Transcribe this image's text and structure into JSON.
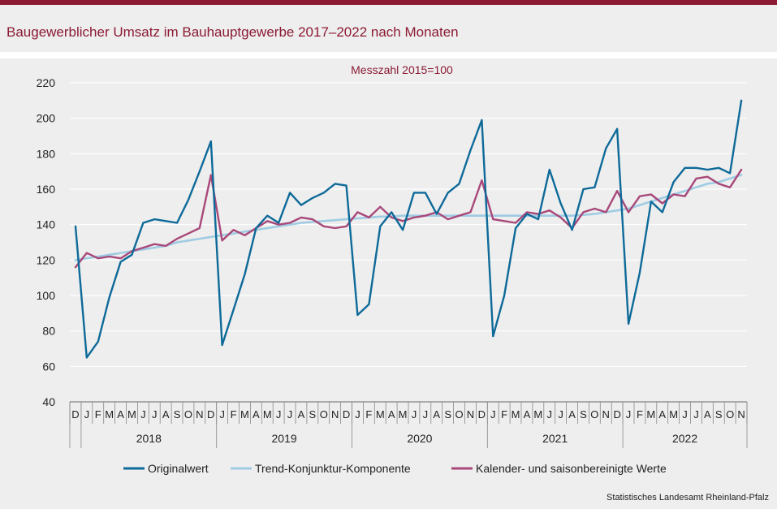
{
  "title": "Baugewerblicher Umsatz im Bauhauptgewerbe 2017–2022 nach Monaten",
  "source": "Statistisches Landesamt Rheinland-Pfalz",
  "colors": {
    "accent": "#8b1a32",
    "original": "#0e6a99",
    "trend": "#9fcce3",
    "seasonal": "#a8487a",
    "background": "#eeeeee"
  },
  "chart_data": {
    "type": "line",
    "subtitle": "Messzahl 2015=100",
    "ylim": [
      40,
      220
    ],
    "yticks": [
      40,
      60,
      80,
      100,
      120,
      140,
      160,
      180,
      200,
      220
    ],
    "x_month_labels": [
      "D",
      "J",
      "F",
      "M",
      "A",
      "M",
      "J",
      "J",
      "A",
      "S",
      "O",
      "N",
      "D",
      "J",
      "F",
      "M",
      "A",
      "M",
      "J",
      "J",
      "A",
      "S",
      "O",
      "N",
      "D",
      "J",
      "F",
      "M",
      "A",
      "M",
      "J",
      "J",
      "A",
      "S",
      "O",
      "N",
      "D",
      "J",
      "F",
      "M",
      "A",
      "M",
      "J",
      "J",
      "A",
      "S",
      "O",
      "N",
      "D",
      "J",
      "F",
      "M",
      "A",
      "M",
      "J",
      "J",
      "A",
      "S",
      "O",
      "N"
    ],
    "years": [
      {
        "label": "2018",
        "start": 1,
        "end": 12
      },
      {
        "label": "2019",
        "start": 13,
        "end": 24
      },
      {
        "label": "2020",
        "start": 25,
        "end": 36
      },
      {
        "label": "2021",
        "start": 37,
        "end": 48
      },
      {
        "label": "2022",
        "start": 49,
        "end": 59
      }
    ],
    "grid": "horizontal",
    "legend_position": "bottom",
    "series": [
      {
        "name": "Originalwert",
        "color": "#0e6a99",
        "values": [
          139,
          65,
          74,
          99,
          119,
          123,
          141,
          143,
          142,
          141,
          154,
          170,
          187,
          72,
          92,
          112,
          138,
          145,
          141,
          158,
          151,
          155,
          158,
          163,
          162,
          89,
          95,
          139,
          147,
          137,
          158,
          158,
          146,
          158,
          163,
          182,
          199,
          77,
          100,
          138,
          146,
          143,
          171,
          152,
          137,
          160,
          161,
          183,
          194,
          84,
          113,
          153,
          147,
          164,
          172,
          172,
          171,
          172,
          169,
          210
        ]
      },
      {
        "name": "Trend-Konjunktur-Komponente",
        "color": "#9fcce3",
        "values": [
          120,
          121,
          122,
          123,
          124,
          125,
          126,
          127,
          128,
          130,
          131,
          132,
          133,
          134,
          135,
          136,
          137,
          138,
          139,
          140,
          141,
          141.5,
          142,
          142.5,
          143,
          143.5,
          144,
          144.5,
          144.5,
          145,
          145,
          145,
          145,
          145,
          145,
          145,
          145,
          145,
          145,
          145,
          145,
          145,
          145,
          145,
          145,
          145.5,
          146,
          147,
          148,
          149,
          151,
          153,
          155,
          157,
          159,
          161,
          163,
          164,
          166,
          168
        ]
      },
      {
        "name": "Kalender- und saisonbereinigte Werte",
        "color": "#a8487a",
        "values": [
          116,
          124,
          121,
          122,
          121,
          125,
          127,
          129,
          128,
          132,
          135,
          138,
          168,
          131,
          137,
          134,
          138,
          142,
          140,
          141,
          144,
          143,
          139,
          138,
          139,
          147,
          144,
          150,
          144,
          142,
          144,
          145,
          147,
          143,
          145,
          147,
          165,
          143,
          142,
          141,
          147,
          146,
          148,
          144,
          138,
          147,
          149,
          147,
          159,
          147,
          156,
          157,
          152,
          157,
          156,
          166,
          167,
          163,
          161,
          171
        ]
      }
    ]
  }
}
